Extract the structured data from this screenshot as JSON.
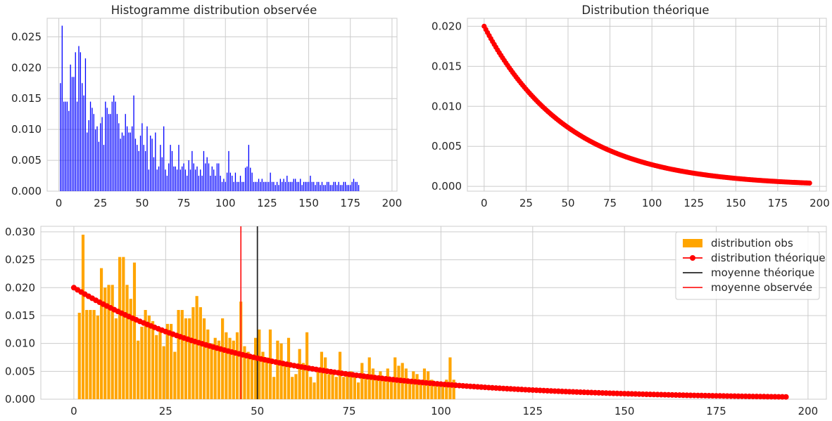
{
  "chart_data": [
    {
      "id": "hist-obs",
      "type": "bar",
      "title": "Histogramme distribution observée",
      "xlabel": "",
      "ylabel": "",
      "xlim": [
        -7,
        203
      ],
      "ylim": [
        0,
        0.028
      ],
      "xticks": [
        0,
        25,
        50,
        75,
        100,
        125,
        150,
        175,
        200
      ],
      "yticks": [
        0.0,
        0.005,
        0.01,
        0.015,
        0.02,
        0.025
      ],
      "ytick_format": "%.3f",
      "color": "#0000ff",
      "bar_width": 0.55,
      "grid": true,
      "x": [
        1,
        2,
        3,
        4,
        5,
        6,
        7,
        8,
        9,
        10,
        11,
        12,
        13,
        14,
        15,
        16,
        17,
        18,
        19,
        20,
        21,
        22,
        23,
        24,
        25,
        26,
        27,
        28,
        29,
        30,
        31,
        32,
        33,
        34,
        35,
        36,
        37,
        38,
        39,
        40,
        41,
        42,
        43,
        44,
        45,
        46,
        47,
        48,
        49,
        50,
        51,
        52,
        53,
        54,
        55,
        56,
        57,
        58,
        59,
        60,
        61,
        62,
        63,
        64,
        65,
        66,
        67,
        68,
        69,
        70,
        71,
        72,
        73,
        74,
        75,
        76,
        77,
        78,
        79,
        80,
        81,
        82,
        83,
        84,
        85,
        86,
        87,
        88,
        89,
        90,
        91,
        92,
        93,
        94,
        95,
        96,
        97,
        98,
        99,
        100,
        101,
        102,
        103,
        104,
        105,
        106,
        107,
        108,
        109,
        110,
        111,
        112,
        113,
        114,
        115,
        116,
        117,
        118,
        119,
        120,
        121,
        122,
        123,
        124,
        125,
        126,
        127,
        128,
        129,
        130,
        131,
        132,
        133,
        134,
        135,
        136,
        137,
        138,
        139,
        140,
        141,
        142,
        143,
        144,
        145,
        146,
        147,
        148,
        149,
        150,
        151,
        152,
        153,
        154,
        155,
        156,
        157,
        158,
        159,
        160,
        161,
        162,
        163,
        164,
        165,
        166,
        167,
        168,
        169,
        170,
        171,
        172,
        173,
        174,
        175,
        176,
        177,
        178,
        179,
        180
      ],
      "values": [
        0.0175,
        0.0268,
        0.0145,
        0.0145,
        0.0145,
        0.013,
        0.0205,
        0.0185,
        0.0185,
        0.0225,
        0.0145,
        0.0235,
        0.0225,
        0.0175,
        0.0155,
        0.0215,
        0.0095,
        0.0115,
        0.0145,
        0.0135,
        0.0125,
        0.01,
        0.0105,
        0.008,
        0.011,
        0.012,
        0.0075,
        0.0145,
        0.0135,
        0.0125,
        0.0125,
        0.0145,
        0.0155,
        0.0145,
        0.0125,
        0.011,
        0.0085,
        0.0095,
        0.009,
        0.0125,
        0.0105,
        0.0095,
        0.0095,
        0.0105,
        0.0155,
        0.0085,
        0.0075,
        0.0065,
        0.009,
        0.011,
        0.0075,
        0.0065,
        0.0105,
        0.0035,
        0.009,
        0.0085,
        0.0055,
        0.0095,
        0.0035,
        0.004,
        0.0075,
        0.0055,
        0.0105,
        0.0035,
        0.0025,
        0.0045,
        0.0075,
        0.0065,
        0.004,
        0.004,
        0.0035,
        0.0075,
        0.0035,
        0.004,
        0.0045,
        0.0035,
        0.0025,
        0.005,
        0.0035,
        0.0065,
        0.0045,
        0.0035,
        0.004,
        0.0025,
        0.0035,
        0.0025,
        0.0065,
        0.0045,
        0.0055,
        0.0045,
        0.0025,
        0.004,
        0.0035,
        0.0025,
        0.0045,
        0.0045,
        0.0025,
        0.0015,
        0.002,
        0.0015,
        0.003,
        0.0065,
        0.003,
        0.0025,
        0.0015,
        0.003,
        0.0015,
        0.0015,
        0.0025,
        0.0015,
        0.0015,
        0.0038,
        0.004,
        0.0075,
        0.0038,
        0.003,
        0.0015,
        0.0015,
        0.0015,
        0.002,
        0.0015,
        0.002,
        0.0015,
        0.0015,
        0.0015,
        0.0015,
        0.003,
        0.0015,
        0.0015,
        0.001,
        0.0015,
        0.001,
        0.002,
        0.0015,
        0.002,
        0.0015,
        0.0025,
        0.0015,
        0.0015,
        0.0015,
        0.002,
        0.002,
        0.0015,
        0.0015,
        0.002,
        0.001,
        0.0015,
        0.0015,
        0.0015,
        0.0015,
        0.0025,
        0.0015,
        0.0015,
        0.001,
        0.0015,
        0.0015,
        0.001,
        0.0015,
        0.001,
        0.001,
        0.0015,
        0.0015,
        0.001,
        0.001,
        0.0015,
        0.0015,
        0.001,
        0.0015,
        0.001,
        0.001,
        0.0015,
        0.0015,
        0.001,
        0.001,
        0.001,
        0.0015,
        0.002,
        0.0015,
        0.0015,
        0.001
      ]
    },
    {
      "id": "dist-theo",
      "type": "scatter",
      "title": "Distribution théorique",
      "xlabel": "",
      "ylabel": "",
      "xlim": [
        -10,
        204
      ],
      "ylim": [
        -0.0006,
        0.021
      ],
      "xticks": [
        0,
        25,
        50,
        75,
        100,
        125,
        150,
        175,
        200
      ],
      "yticks": [
        0.0,
        0.005,
        0.01,
        0.015,
        0.02
      ],
      "ytick_format": "%.3f",
      "color": "#ff0000",
      "x_range": [
        0,
        194
      ],
      "function": "0.02*exp(-0.02*x)",
      "grid": true
    },
    {
      "id": "combined",
      "type": "bar",
      "title": "",
      "xlabel": "",
      "ylabel": "",
      "xlim": [
        -9,
        205
      ],
      "ylim": [
        0,
        0.031
      ],
      "xticks": [
        0,
        25,
        50,
        75,
        100,
        125,
        150,
        175,
        200
      ],
      "yticks": [
        0.0,
        0.005,
        0.01,
        0.015,
        0.02,
        0.025,
        0.03
      ],
      "ytick_format": "%.3f",
      "grid": true,
      "legend_position": "top-right",
      "bar_color": "#ffa500",
      "bar_width": 0.8,
      "bar_start_x": 1.5,
      "bar_values": [
        0.0155,
        0.0295,
        0.016,
        0.016,
        0.016,
        0.015,
        0.0235,
        0.02,
        0.0205,
        0.0205,
        0.0145,
        0.0255,
        0.0255,
        0.0205,
        0.018,
        0.0245,
        0.0105,
        0.013,
        0.016,
        0.015,
        0.014,
        0.0115,
        0.0125,
        0.0095,
        0.0135,
        0.0135,
        0.0085,
        0.016,
        0.016,
        0.0145,
        0.0145,
        0.0165,
        0.0185,
        0.0165,
        0.0145,
        0.0125,
        0.01,
        0.011,
        0.0105,
        0.0145,
        0.012,
        0.011,
        0.0105,
        0.012,
        0.0175,
        0.0095,
        0.0085,
        0.0075,
        0.011,
        0.0125,
        0.0085,
        0.0075,
        0.0125,
        0.004,
        0.0105,
        0.01,
        0.0065,
        0.011,
        0.004,
        0.0045,
        0.009,
        0.0065,
        0.012,
        0.004,
        0.003,
        0.0055,
        0.0085,
        0.0075,
        0.0045,
        0.0045,
        0.004,
        0.0085,
        0.004,
        0.0045,
        0.005,
        0.0045,
        0.003,
        0.0065,
        0.0045,
        0.0075,
        0.0055,
        0.004,
        0.005,
        0.0035,
        0.0055,
        0.0035,
        0.0075,
        0.006,
        0.0065,
        0.0055,
        0.0035,
        0.005,
        0.0045,
        0.0035,
        0.0055,
        0.005,
        0.0035,
        0.0025,
        0.003,
        0.0025,
        0.0035,
        0.0075,
        0.0035
      ],
      "theoretical": {
        "color": "#ff0000",
        "x_range": [
          0,
          194
        ],
        "function": "0.02*exp(-0.02*x)"
      },
      "vlines": [
        {
          "x": 50,
          "color": "#262626",
          "legend": "moyenne théorique"
        },
        {
          "x": 45.5,
          "color": "#ff2020",
          "legend": "moyenne observée"
        }
      ],
      "legend": [
        {
          "label": "distribution obs",
          "kind": "patch",
          "color": "#ffa500"
        },
        {
          "label": "distribution théorique",
          "kind": "line-marker",
          "color": "#ff0000"
        },
        {
          "label": "moyenne théorique",
          "kind": "line",
          "color": "#262626"
        },
        {
          "label": "moyenne observée",
          "kind": "line",
          "color": "#ff2020"
        }
      ]
    }
  ]
}
